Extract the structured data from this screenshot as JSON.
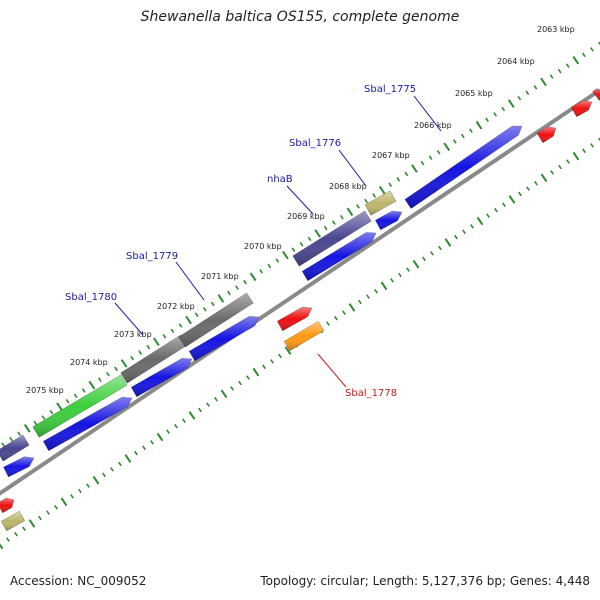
{
  "title": "Shewanella baltica OS155, complete genome",
  "footer": {
    "accession": "Accession: NC_009052",
    "summary": "Topology: circular; Length: 5,127,376 bp; Genes: 4,448"
  },
  "colors": {
    "backbone": "#8a8a8a",
    "tick_track": "#2e8b2e",
    "label_blue": "#1a1aa6",
    "label_red": "#c81a1a",
    "cds_blue": "#1414e0",
    "purple": "#4a4690",
    "gray": "#6a6a6a",
    "green": "#3ccf3c",
    "tan": "#bdb76b",
    "red": "#ee1010",
    "orange": "#ff9910"
  },
  "scale_ticks": [
    "2063 kbp",
    "2064 kbp",
    "2065 kbp",
    "2066 kbp",
    "2067 kbp",
    "2068 kbp",
    "2069 kbp",
    "2070 kbp",
    "2071 kbp",
    "2072 kbp",
    "2073 kbp",
    "2074 kbp",
    "2075 kbp"
  ],
  "gene_labels": [
    {
      "text": "Sbal_1775",
      "color": "blue"
    },
    {
      "text": "Sbal_1776",
      "color": "blue"
    },
    {
      "text": "nhaB",
      "color": "blue"
    },
    {
      "text": "Sbal_1779",
      "color": "blue"
    },
    {
      "text": "Sbal_1780",
      "color": "blue"
    },
    {
      "text": "Sbal_1778",
      "color": "red"
    }
  ]
}
